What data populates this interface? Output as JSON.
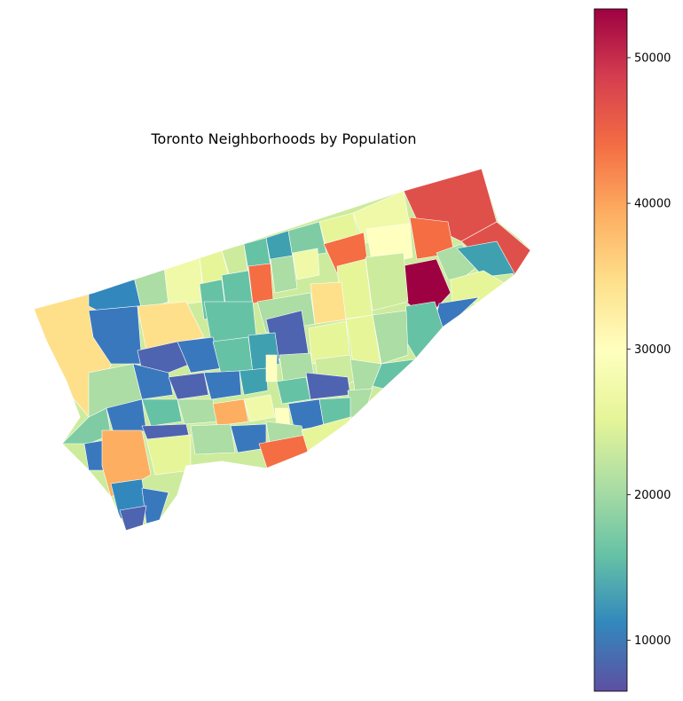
{
  "title": "Toronto Neighborhoods by Population",
  "colorbar": {
    "colormap": "Spectral_r",
    "min": 6500,
    "max": 53350,
    "ticks": [
      {
        "value": 10000,
        "label": "10000"
      },
      {
        "value": 20000,
        "label": "20000"
      },
      {
        "value": 30000,
        "label": "30000"
      },
      {
        "value": 40000,
        "label": "40000"
      },
      {
        "value": 50000,
        "label": "50000"
      }
    ],
    "stops": [
      "#5e4fa2",
      "#3288bd",
      "#66c2a5",
      "#abdda4",
      "#e6f598",
      "#ffffbf",
      "#fee08b",
      "#fdae61",
      "#f46d43",
      "#d53e4f",
      "#9e0142"
    ]
  },
  "map": {
    "outline_color": "#ffffff",
    "region_count": 140
  }
}
